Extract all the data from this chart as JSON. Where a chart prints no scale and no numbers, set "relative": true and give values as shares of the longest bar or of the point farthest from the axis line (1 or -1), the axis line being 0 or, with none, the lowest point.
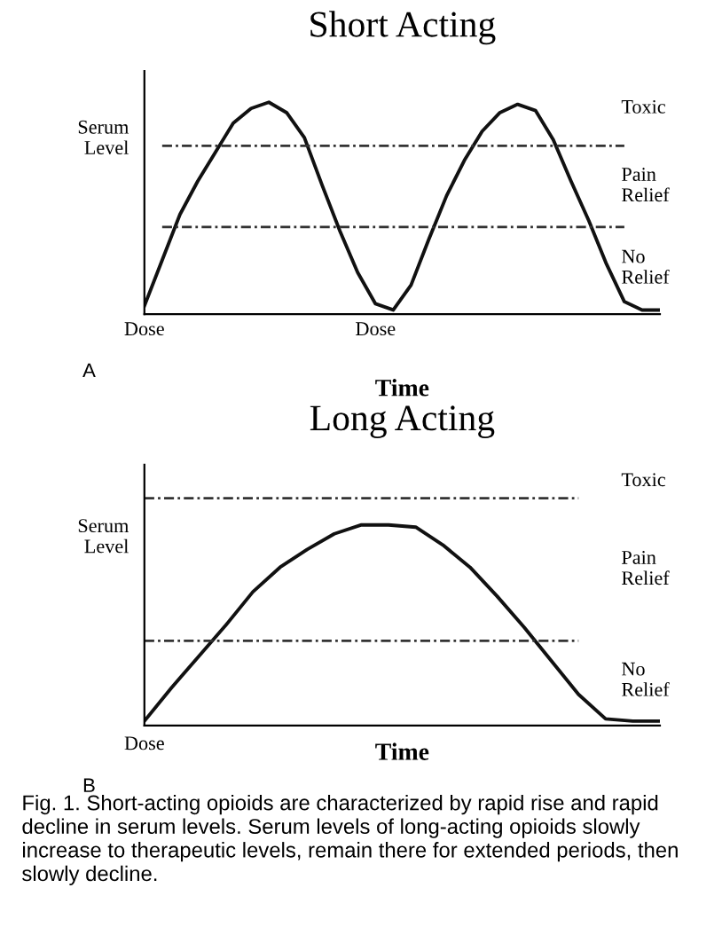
{
  "chart_data": [
    {
      "type": "line",
      "title": "Short Acting",
      "xlabel": "Time",
      "ylabel": "Serum\nLevel",
      "relative": true,
      "categories": [
        "Dose",
        null,
        null,
        null,
        null,
        null,
        null,
        null,
        null,
        null,
        null,
        null,
        null,
        "Dose",
        null,
        null,
        null,
        null,
        null,
        null,
        null,
        null,
        null,
        null,
        null,
        null,
        null,
        null,
        null,
        null
      ],
      "series": [
        {
          "color": "#111111",
          "values": [
            0.02,
            0.24,
            0.46,
            0.62,
            0.76,
            0.9,
            0.97,
            1.0,
            0.95,
            0.83,
            0.6,
            0.38,
            0.18,
            0.03,
            0,
            0.12,
            0.34,
            0.55,
            0.72,
            0.86,
            0.95,
            0.99,
            0.96,
            0.82,
            0.62,
            0.43,
            0.22,
            0.04,
            0,
            0
          ]
        },
        {
          "color": "#333333",
          "line_style": "dashed",
          "values": [
            null,
            0.79,
            0.79,
            0.79,
            0.79,
            0.79,
            0.79,
            0.79,
            0.79,
            0.79,
            0.79,
            0.79,
            0.79,
            0.79,
            0.79,
            0.79,
            0.79,
            0.79,
            0.79,
            0.79,
            0.79,
            0.79,
            0.79,
            0.79,
            0.79,
            0.79,
            0.79,
            0.79,
            null,
            null
          ]
        },
        {
          "color": "#333333",
          "line_style": "dashed",
          "values": [
            null,
            0.4,
            0.4,
            0.4,
            0.4,
            0.4,
            0.4,
            0.4,
            0.4,
            0.4,
            0.4,
            0.4,
            0.4,
            0.4,
            0.4,
            0.4,
            0.4,
            0.4,
            0.4,
            0.4,
            0.4,
            0.4,
            0.4,
            0.4,
            0.4,
            0.4,
            0.4,
            0.4,
            null,
            null
          ]
        }
      ],
      "annotations": [
        "A",
        "No\nRelief",
        "Pain\nRelief",
        "Toxic"
      ]
    },
    {
      "type": "line",
      "title": "Long Acting",
      "xlabel": "Time",
      "ylabel": "Serum\nLevel",
      "relative": true,
      "categories": [
        null,
        null,
        null,
        null,
        null,
        null,
        null,
        null,
        null,
        null,
        null,
        null,
        null,
        null,
        null,
        null,
        null,
        null,
        null,
        null
      ],
      "series": [
        {
          "color": "#111111",
          "values": [
            0,
            0.15,
            0.29,
            0.43,
            0.58,
            0.69,
            0.77,
            0.84,
            0.88,
            0.88,
            0.87,
            0.79,
            0.69,
            0.56,
            0.42,
            0.27,
            0.12,
            0.01,
            0,
            0
          ]
        },
        {
          "color": "#333333",
          "line_style": "dashed",
          "values": [
            1,
            1,
            1,
            1,
            1,
            1,
            1,
            1,
            1,
            1,
            1,
            1,
            1,
            1,
            1,
            1,
            1,
            null,
            null,
            null
          ]
        },
        {
          "color": "#333333",
          "line_style": "dashed",
          "values": [
            0.36,
            0.36,
            0.36,
            0.36,
            0.36,
            0.36,
            0.36,
            0.36,
            0.36,
            0.36,
            0.36,
            0.36,
            0.36,
            0.36,
            0.36,
            0.36,
            0.36,
            null,
            null,
            null
          ]
        }
      ],
      "annotations": [
        "B",
        "Dose",
        "No\nRelief",
        "Pain\nRelief",
        "Toxic",
        "Fig. 1. Short-acting opioids are characterized by rapid rise and rapid decline in serum levels. Serum levels of long-acting opioids slowly increase to therapeutic levels, remain there for extended periods, then slowly decline."
      ]
    }
  ]
}
